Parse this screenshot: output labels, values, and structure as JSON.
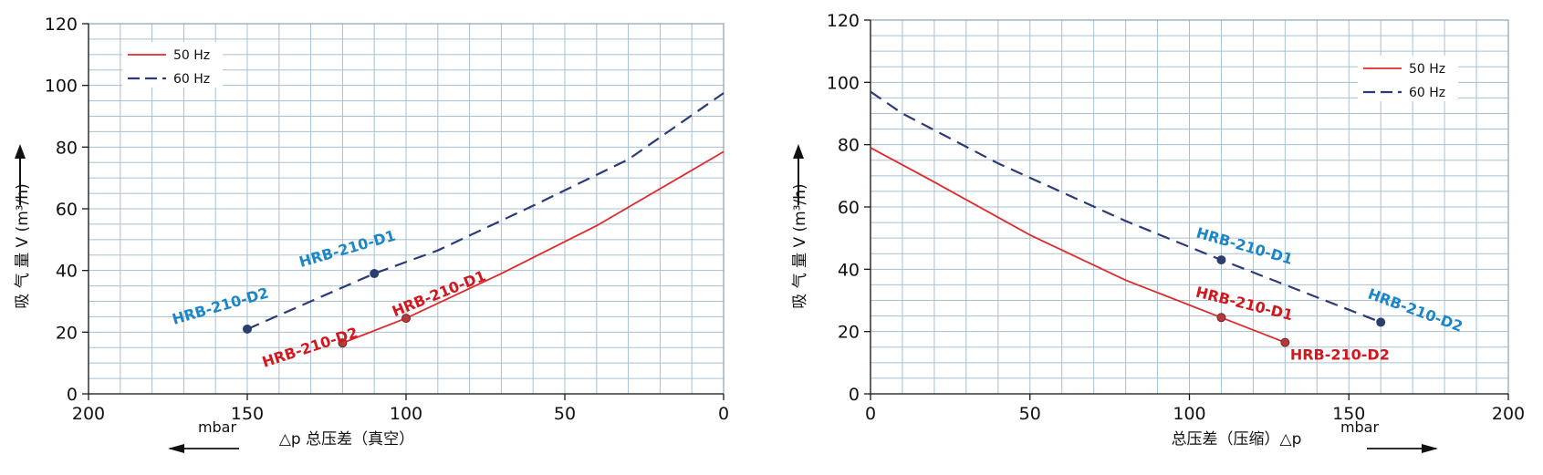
{
  "colors": {
    "grid": "#a8c0d0",
    "frame": "#8aa2b4",
    "axis": "#1a1a1a",
    "hz50": "#e02a2a",
    "hz60": "#2b3a7a",
    "label60": "#1a86c8",
    "label50": "#d4171d",
    "point": "#2b3f6e"
  },
  "chart_data": [
    {
      "type": "line",
      "ylabel": "吸 气 量 V (m³/h)",
      "xlabel": "△p  总压差（真空）",
      "unit_label": "mbar",
      "unit_arrow_direction": "left",
      "xlim": [
        200,
        0
      ],
      "ylim": [
        0,
        120
      ],
      "x_ticks": [
        200,
        150,
        100,
        50,
        0
      ],
      "y_ticks": [
        0,
        20,
        40,
        60,
        80,
        100,
        120
      ],
      "grid": true,
      "legend_position": "top-left",
      "series": [
        {
          "name": "50 Hz",
          "style": "solid",
          "x": [
            120,
            100,
            70,
            40,
            0
          ],
          "y": [
            16.5,
            24.5,
            39,
            54.5,
            78.5
          ]
        },
        {
          "name": "60 Hz",
          "style": "dashed",
          "x": [
            150,
            110,
            90,
            60,
            30,
            0
          ],
          "y": [
            21,
            39,
            46.5,
            61,
            76,
            97.5
          ]
        }
      ],
      "annotations": [
        {
          "text": "HRB-210-D1",
          "series": "60 Hz",
          "x": 110,
          "y": 39
        },
        {
          "text": "HRB-210-D2",
          "series": "60 Hz",
          "x": 150,
          "y": 21
        },
        {
          "text": "HRB-210-D1",
          "series": "50 Hz",
          "x": 100,
          "y": 24.5
        },
        {
          "text": "HRB-210-D2",
          "series": "50 Hz",
          "x": 120,
          "y": 16.5
        }
      ]
    },
    {
      "type": "line",
      "ylabel": "吸 气 量 V (m³/h)",
      "xlabel": "总压差（压缩）△p",
      "unit_label": "mbar",
      "unit_arrow_direction": "right",
      "xlim": [
        0,
        200
      ],
      "ylim": [
        0,
        120
      ],
      "x_ticks": [
        0,
        50,
        100,
        150,
        200
      ],
      "y_ticks": [
        0,
        20,
        40,
        60,
        80,
        100,
        120
      ],
      "grid": true,
      "legend_position": "top-right",
      "series": [
        {
          "name": "50 Hz",
          "style": "solid",
          "x": [
            0,
            20,
            50,
            80,
            110,
            130
          ],
          "y": [
            79,
            68,
            51,
            36.5,
            24.5,
            16.5
          ]
        },
        {
          "name": "60 Hz",
          "style": "dashed",
          "x": [
            0,
            10,
            40,
            80,
            110,
            160
          ],
          "y": [
            97,
            90,
            74,
            55.5,
            43,
            23
          ]
        }
      ],
      "annotations": [
        {
          "text": "HRB-210-D1",
          "series": "60 Hz",
          "x": 110,
          "y": 43
        },
        {
          "text": "HRB-210-D2",
          "series": "60 Hz",
          "x": 160,
          "y": 23
        },
        {
          "text": "HRB-210-D1",
          "series": "50 Hz",
          "x": 110,
          "y": 24.5
        },
        {
          "text": "HRB-210-D2",
          "series": "50 Hz",
          "x": 130,
          "y": 16.5
        }
      ]
    }
  ]
}
